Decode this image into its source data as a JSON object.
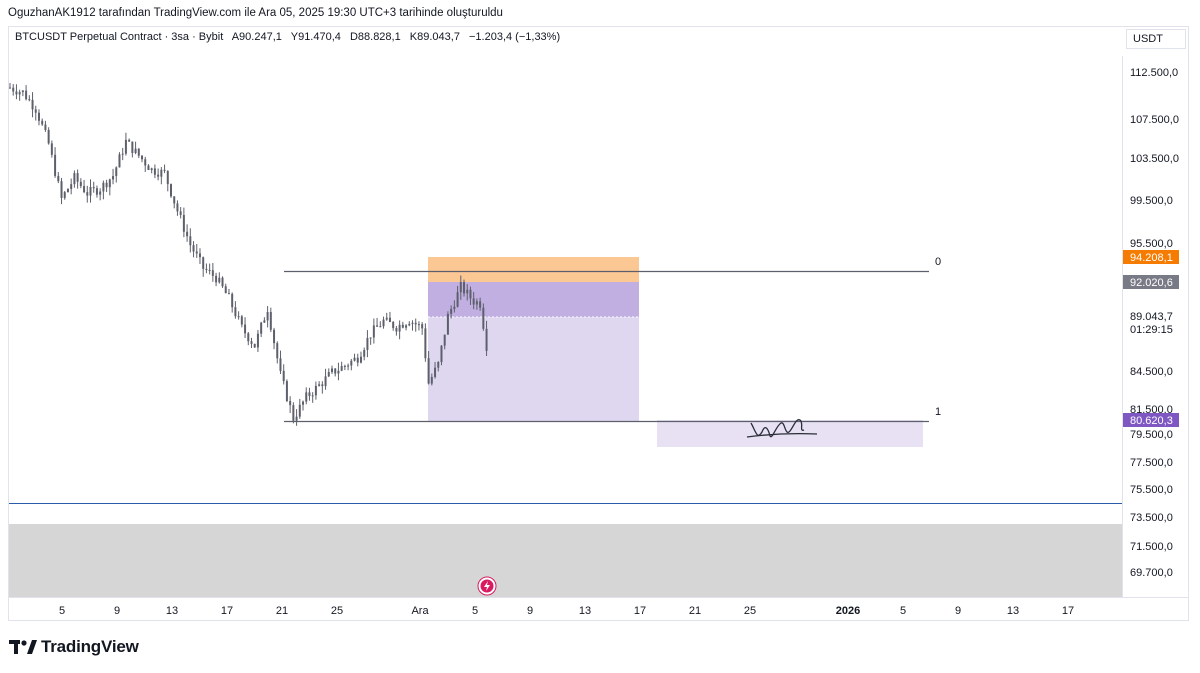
{
  "attribution": "OguzhanAK1912 tarafından TradingView.com ile Ara 05, 2025 19:30 UTC+3 tarihinde oluşturuldu",
  "legend": {
    "symbol": "BTCUSDT Perpetual Contract · 3sa · Bybit",
    "open": "A90.247,1",
    "high": "Y91.470,4",
    "low": "D88.828,1",
    "close": "K89.043,7",
    "change": "−1.203,4 (−1,33%)"
  },
  "currency_button": "USDT",
  "brand": "TradingView",
  "colors": {
    "candle": "#5d606b",
    "accent_orange": "#f57c00",
    "accent_purple": "#7e57c2",
    "price_gray": "#787b86",
    "baseline_blue": "#2a5caa"
  },
  "chart_data": {
    "type": "candlestick",
    "y_axis_labels": [
      "112.500,0",
      "107.500,0",
      "103.500,0",
      "99.500,0",
      "95.500,0",
      "89.043,7",
      "01:29:15",
      "84.500,0",
      "81.500,0",
      "79.500,0",
      "77.500,0",
      "75.500,0",
      "73.500,0",
      "71.500,0",
      "69.700,0"
    ],
    "x_axis_labels": [
      "5",
      "9",
      "13",
      "17",
      "21",
      "25",
      "Ara",
      "5",
      "9",
      "13",
      "17",
      "21",
      "25",
      "2026",
      "5",
      "9",
      "13",
      "17"
    ],
    "price_badges": [
      {
        "label": "94.208,1",
        "color": "#f57c00"
      },
      {
        "label": "92.020,6",
        "color": "#787b86"
      },
      {
        "label": "80.620,3",
        "color": "#7e57c2"
      }
    ],
    "fib_levels": [
      {
        "label": "0",
        "price": 93.0
      },
      {
        "label": "1",
        "price": 80.6
      }
    ],
    "series_price_path": [
      [
        0,
        111.0
      ],
      [
        4,
        110.6
      ],
      [
        8,
        109.2
      ],
      [
        12,
        106.2
      ],
      [
        16,
        101.5
      ],
      [
        20,
        103.3
      ],
      [
        24,
        102.0
      ],
      [
        28,
        102.4
      ],
      [
        32,
        103.5
      ],
      [
        36,
        106.4
      ],
      [
        40,
        105.2
      ],
      [
        44,
        104.0
      ],
      [
        48,
        103.7
      ],
      [
        52,
        100.5
      ],
      [
        56,
        97.6
      ],
      [
        60,
        95.6
      ],
      [
        64,
        94.8
      ],
      [
        68,
        93.0
      ],
      [
        72,
        90.5
      ],
      [
        76,
        89.0
      ],
      [
        80,
        92.2
      ],
      [
        84,
        86.5
      ],
      [
        88,
        82.8
      ],
      [
        92,
        84.6
      ],
      [
        96,
        85.6
      ],
      [
        100,
        86.7
      ],
      [
        104,
        87.3
      ],
      [
        108,
        88.0
      ],
      [
        112,
        90.0
      ],
      [
        116,
        91.1
      ],
      [
        120,
        90.6
      ],
      [
        124,
        91.2
      ],
      [
        128,
        90.5
      ],
      [
        130,
        85.8
      ],
      [
        133,
        87.4
      ],
      [
        136,
        91.5
      ],
      [
        140,
        94.0
      ],
      [
        144,
        92.8
      ],
      [
        146,
        92.6
      ],
      [
        148,
        89.0
      ]
    ],
    "ylim": [
      68.5,
      114.5
    ]
  }
}
